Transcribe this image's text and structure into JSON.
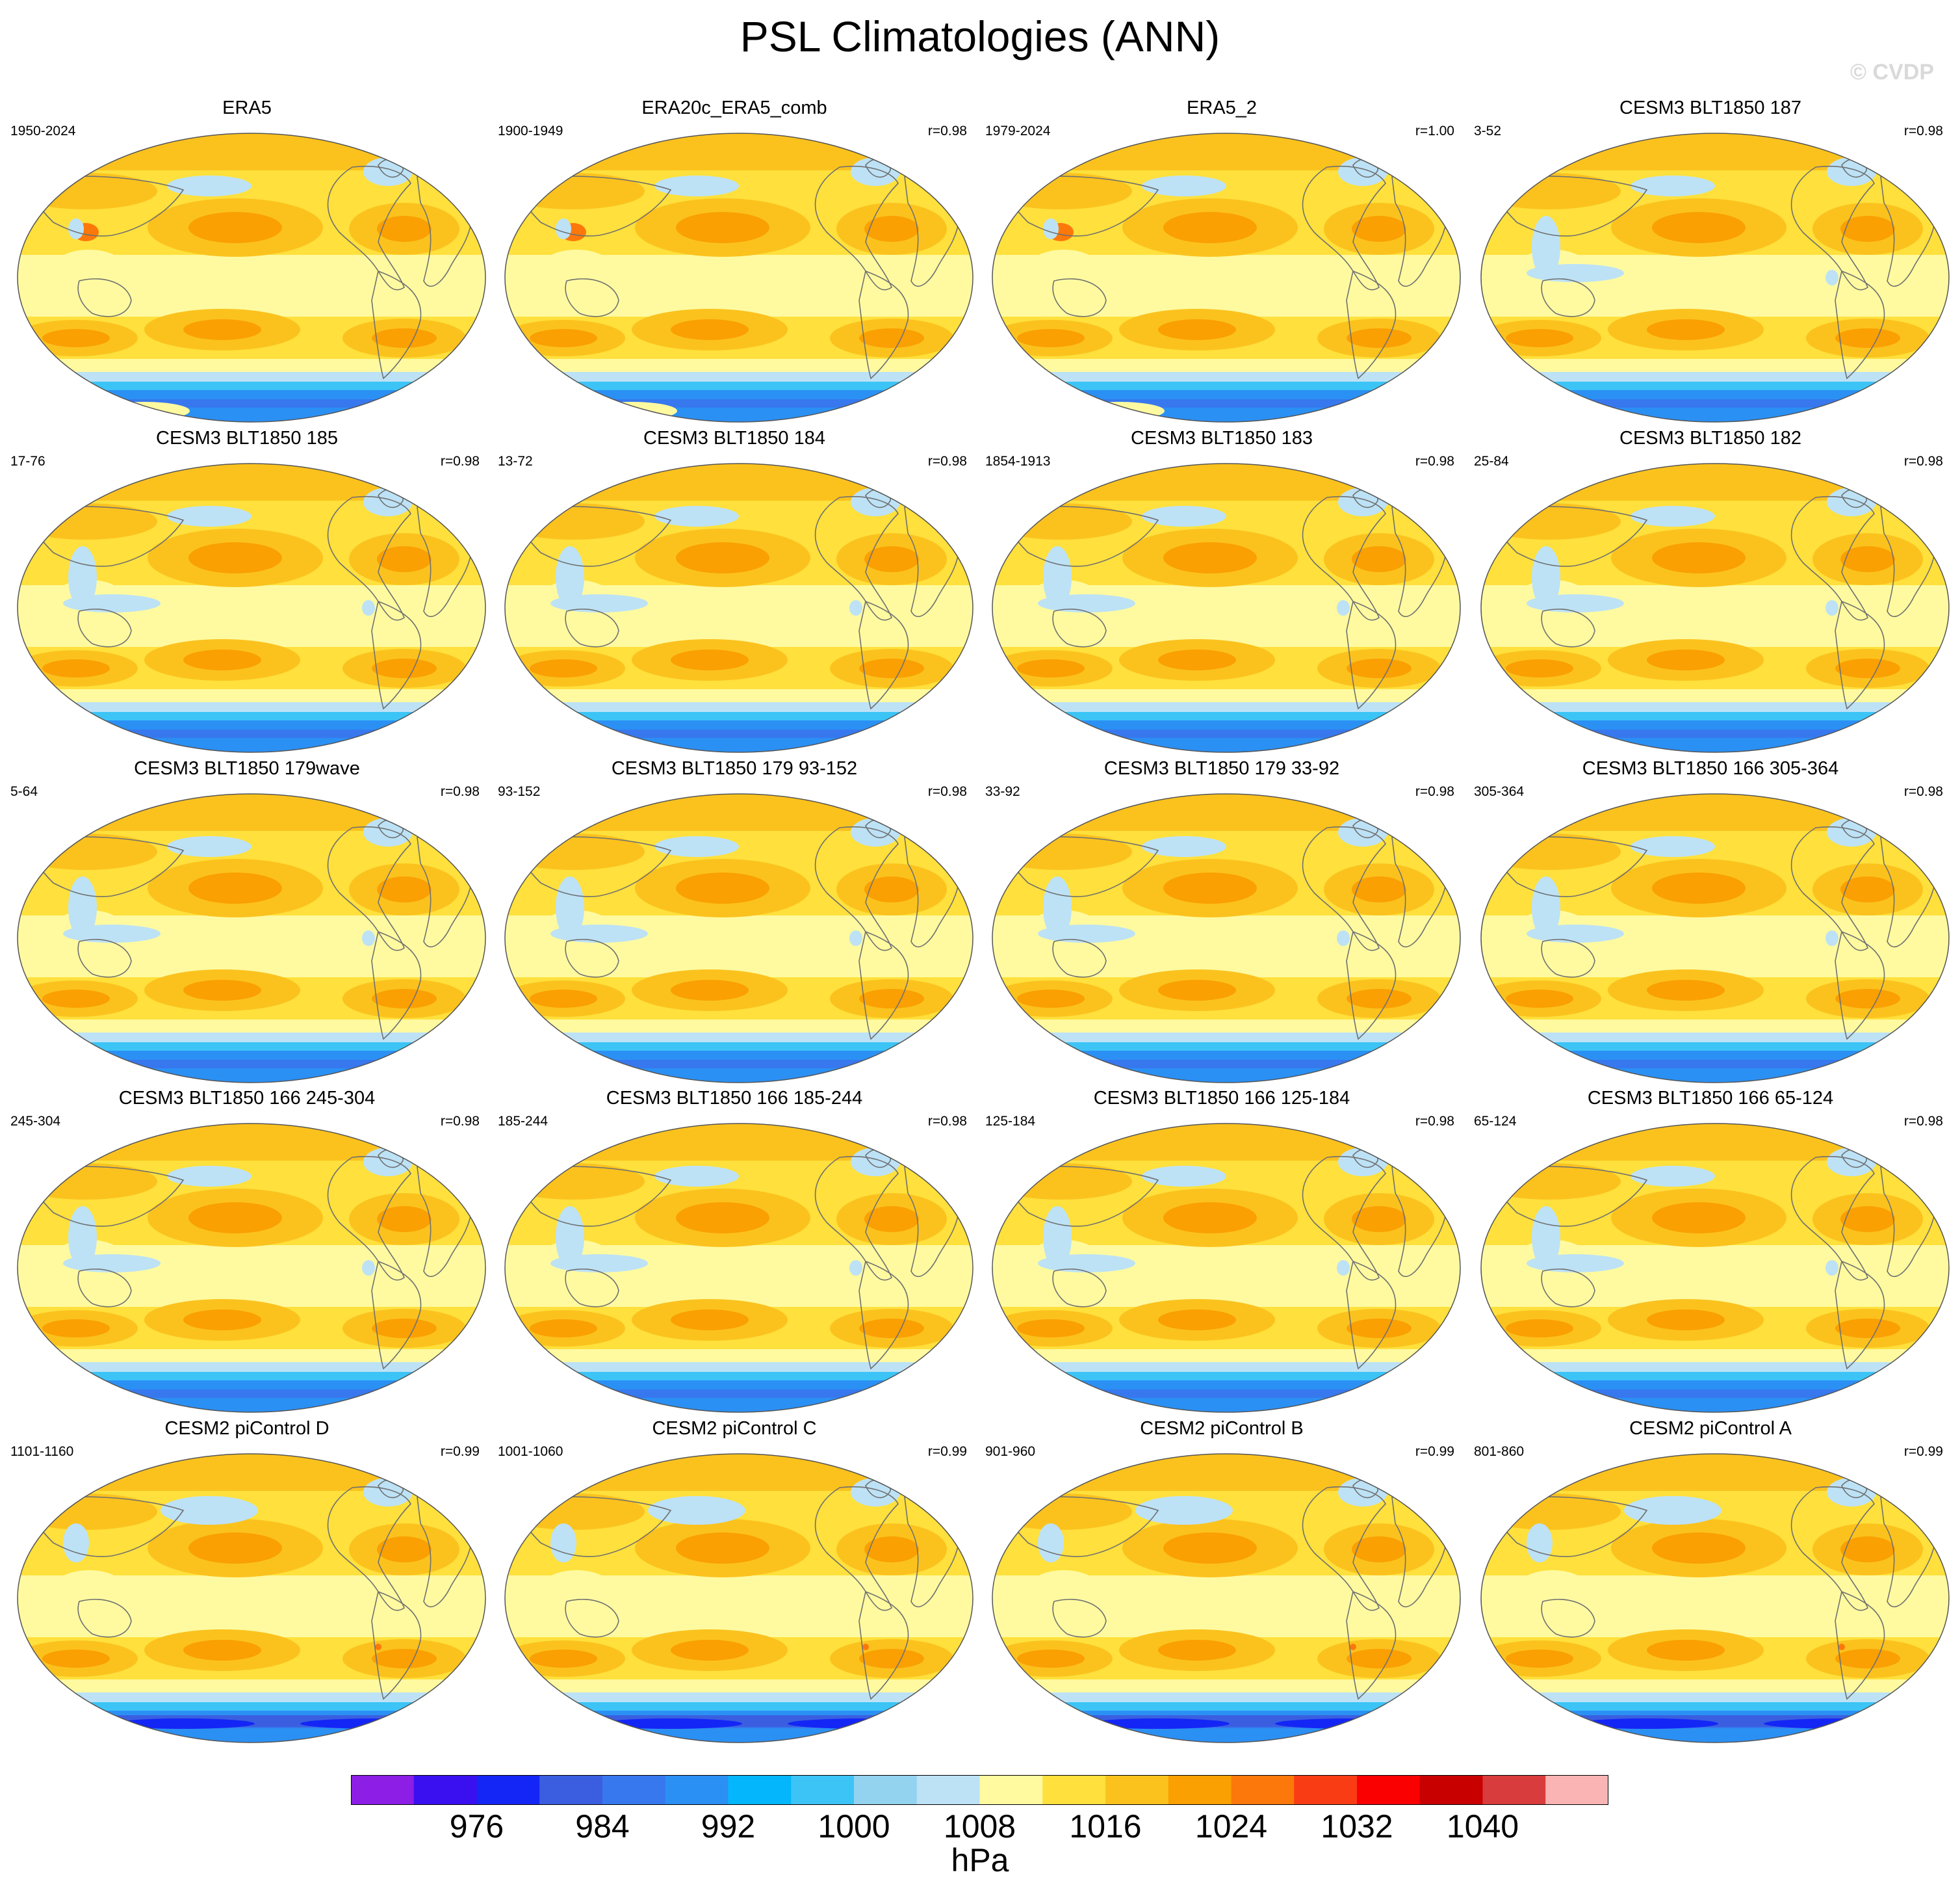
{
  "title": "PSL Climatologies (ANN)",
  "watermark": "© CVDP",
  "colors": {
    "levels": [
      "#8c1ee6",
      "#3a0ff0",
      "#1426f5",
      "#3b5ee0",
      "#3778ee",
      "#2b90f4",
      "#04b6fb",
      "#3cc4f6",
      "#93d3f0",
      "#bde2f6",
      "#fffaa0",
      "#ffe03c",
      "#fbc21e",
      "#faa002",
      "#fc780a",
      "#fa3c14",
      "#fa0000",
      "#c80000",
      "#d93c3c",
      "#fbb4b4"
    ],
    "coast": "#707070",
    "border": "#555555"
  },
  "chart_data": {
    "type": "heatmap",
    "colorbar": {
      "ticks": [
        "976",
        "984",
        "992",
        "1000",
        "1008",
        "1016",
        "1024",
        "1032",
        "1040"
      ],
      "units": "hPa"
    },
    "panels": [
      {
        "title": "ERA5",
        "period": "1950-2024",
        "r": "",
        "variant": 0
      },
      {
        "title": "ERA20c_ERA5_comb",
        "period": "1900-1949",
        "r": "r=0.98",
        "variant": 0
      },
      {
        "title": "ERA5_2",
        "period": "1979-2024",
        "r": "r=1.00",
        "variant": 0
      },
      {
        "title": "CESM3 BLT1850 187",
        "period": "3-52",
        "r": "r=0.98",
        "variant": 1
      },
      {
        "title": "CESM3 BLT1850 185",
        "period": "17-76",
        "r": "r=0.98",
        "variant": 1
      },
      {
        "title": "CESM3 BLT1850 184",
        "period": "13-72",
        "r": "r=0.98",
        "variant": 1
      },
      {
        "title": "CESM3 BLT1850 183",
        "period": "1854-1913",
        "r": "r=0.98",
        "variant": 1
      },
      {
        "title": "CESM3 BLT1850 182",
        "period": "25-84",
        "r": "r=0.98",
        "variant": 1
      },
      {
        "title": "CESM3 BLT1850 179wave",
        "period": "5-64",
        "r": "r=0.98",
        "variant": 1
      },
      {
        "title": "CESM3 BLT1850 179 93-152",
        "period": "93-152",
        "r": "r=0.98",
        "variant": 1
      },
      {
        "title": "CESM3 BLT1850 179 33-92",
        "period": "33-92",
        "r": "r=0.98",
        "variant": 1
      },
      {
        "title": "CESM3 BLT1850 166 305-364",
        "period": "305-364",
        "r": "r=0.98",
        "variant": 1
      },
      {
        "title": "CESM3 BLT1850 166 245-304",
        "period": "245-304",
        "r": "r=0.98",
        "variant": 1
      },
      {
        "title": "CESM3 BLT1850 166 185-244",
        "period": "185-244",
        "r": "r=0.98",
        "variant": 1
      },
      {
        "title": "CESM3 BLT1850 166 125-184",
        "period": "125-184",
        "r": "r=0.98",
        "variant": 1
      },
      {
        "title": "CESM3 BLT1850 166 65-124",
        "period": "65-124",
        "r": "r=0.98",
        "variant": 1
      },
      {
        "title": "CESM2 piControl D",
        "period": "1101-1160",
        "r": "r=0.99",
        "variant": 2
      },
      {
        "title": "CESM2 piControl C",
        "period": "1001-1060",
        "r": "r=0.99",
        "variant": 2
      },
      {
        "title": "CESM2 piControl B",
        "period": "901-960",
        "r": "r=0.99",
        "variant": 2
      },
      {
        "title": "CESM2 piControl A",
        "period": "801-860",
        "r": "r=0.99",
        "variant": 2
      }
    ]
  }
}
